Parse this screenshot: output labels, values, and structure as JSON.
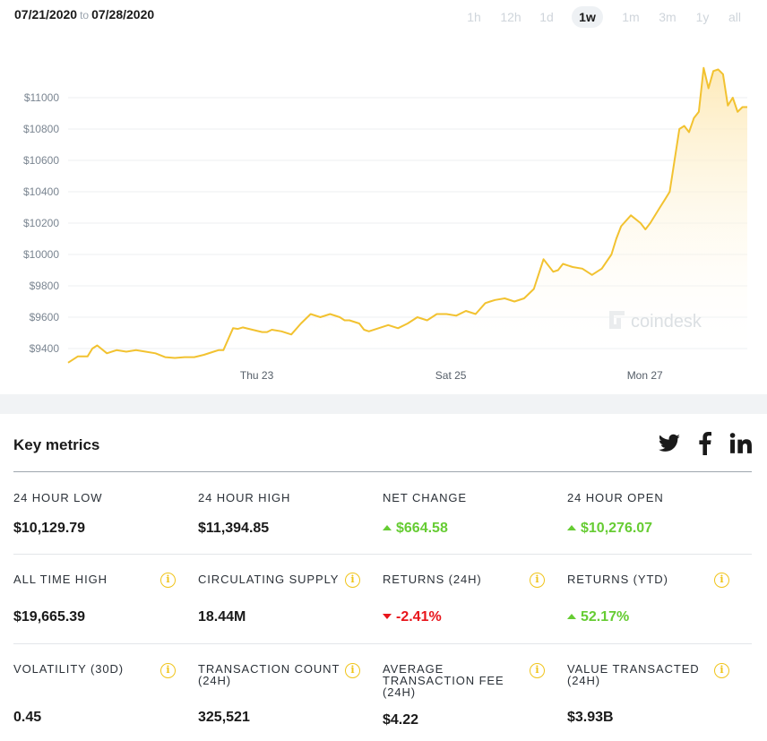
{
  "header": {
    "date_from": "07/21/2020",
    "date_to_word": "to",
    "date_to": "07/28/2020"
  },
  "range_tabs": [
    {
      "label": "1h",
      "active": false
    },
    {
      "label": "12h",
      "active": false
    },
    {
      "label": "1d",
      "active": false
    },
    {
      "label": "1w",
      "active": true
    },
    {
      "label": "1m",
      "active": false
    },
    {
      "label": "3m",
      "active": false
    },
    {
      "label": "1y",
      "active": false
    },
    {
      "label": "all",
      "active": false
    }
  ],
  "watermark": {
    "text": "coindesk",
    "icon": "coindesk-logo-icon"
  },
  "colors": {
    "line": "#f2c230",
    "area_top": "#fde9b6",
    "positive": "#66cc33",
    "negative": "#e8151b",
    "info_icon": "#f0c419"
  },
  "chart_data": {
    "type": "area",
    "title": "",
    "xlabel": "",
    "ylabel": "",
    "x_tick_labels": [
      "Thu 23",
      "Sat 25",
      "Mon 27"
    ],
    "y_tick_labels": [
      "$9400",
      "$9600",
      "$9800",
      "$10000",
      "$10200",
      "$10400",
      "$10600",
      "$10800",
      "$11000"
    ],
    "ylim": [
      9310,
      11200
    ],
    "xlim": [
      0,
      7
    ],
    "grid": true,
    "legend": "none",
    "series": [
      {
        "x": [
          0,
          0.05,
          0.1,
          0.2,
          0.25,
          0.3,
          0.4,
          0.5,
          0.6,
          0.7,
          0.8,
          0.9,
          1.0,
          1.1,
          1.2,
          1.3,
          1.4,
          1.5,
          1.55,
          1.6,
          1.7,
          1.75,
          1.8,
          1.9,
          2.0,
          2.05,
          2.1,
          2.2,
          2.3,
          2.4,
          2.5,
          2.6,
          2.7,
          2.8,
          2.85,
          2.9,
          3.0,
          3.05,
          3.1,
          3.2,
          3.3,
          3.4,
          3.5,
          3.6,
          3.7,
          3.8,
          3.9,
          4.0,
          4.1,
          4.2,
          4.3,
          4.35,
          4.4,
          4.5,
          4.6,
          4.7,
          4.8,
          4.9,
          5.0,
          5.05,
          5.1,
          5.2,
          5.3,
          5.4,
          5.5,
          5.6,
          5.65,
          5.7,
          5.8,
          5.9,
          5.95,
          6.0,
          6.1,
          6.15,
          6.2,
          6.3,
          6.35,
          6.4,
          6.45,
          6.5,
          6.55,
          6.6,
          6.65,
          6.7,
          6.75,
          6.8,
          6.85,
          6.9,
          6.95,
          7.0
        ],
        "y": [
          9310,
          9330,
          9350,
          9350,
          9400,
          9420,
          9370,
          9390,
          9380,
          9390,
          9380,
          9370,
          9345,
          9340,
          9345,
          9345,
          9360,
          9380,
          9390,
          9390,
          9530,
          9525,
          9535,
          9520,
          9505,
          9505,
          9520,
          9510,
          9490,
          9560,
          9620,
          9600,
          9620,
          9600,
          9580,
          9580,
          9560,
          9520,
          9510,
          9530,
          9550,
          9530,
          9560,
          9600,
          9580,
          9620,
          9620,
          9610,
          9640,
          9620,
          9690,
          9700,
          9710,
          9720,
          9700,
          9720,
          9780,
          9970,
          9890,
          9900,
          9940,
          9920,
          9910,
          9870,
          9910,
          10000,
          10100,
          10180,
          10250,
          10200,
          10160,
          10200,
          10300,
          10350,
          10400,
          10800,
          10820,
          10780,
          10870,
          10910,
          11190,
          11060,
          11170,
          11180,
          11150,
          10950,
          11000,
          10910,
          10940,
          10940
        ]
      }
    ]
  },
  "metrics": {
    "title": "Key metrics",
    "social": [
      "twitter-icon",
      "facebook-icon",
      "linkedin-icon"
    ],
    "rows": [
      [
        {
          "label": "24 HOUR LOW",
          "value": "$10,129.79",
          "trend": "none",
          "info": false
        },
        {
          "label": "24 HOUR HIGH",
          "value": "$11,394.85",
          "trend": "none",
          "info": false
        },
        {
          "label": "NET CHANGE",
          "value": "$664.58",
          "trend": "up",
          "info": false
        },
        {
          "label": "24 HOUR OPEN",
          "value": "$10,276.07",
          "trend": "up",
          "info": false
        }
      ],
      [
        {
          "label": "ALL TIME HIGH",
          "value": "$19,665.39",
          "trend": "none",
          "info": true
        },
        {
          "label": "CIRCULATING SUPPLY",
          "value": "18.44M",
          "trend": "none",
          "info": true
        },
        {
          "label": "RETURNS (24H)",
          "value": "-2.41%",
          "trend": "down",
          "info": true
        },
        {
          "label": "RETURNS (YTD)",
          "value": "52.17%",
          "trend": "up",
          "info": true
        }
      ],
      [
        {
          "label": "VOLATILITY (30D)",
          "value": "0.45",
          "trend": "none",
          "info": true
        },
        {
          "label": "TRANSACTION COUNT (24H)",
          "value": "325,521",
          "trend": "none",
          "info": true
        },
        {
          "label": "AVERAGE TRANSACTION FEE (24H)",
          "value": "$4.22",
          "trend": "none",
          "info": true
        },
        {
          "label": "VALUE TRANSACTED (24H)",
          "value": "$3.93B",
          "trend": "none",
          "info": true
        }
      ]
    ]
  }
}
